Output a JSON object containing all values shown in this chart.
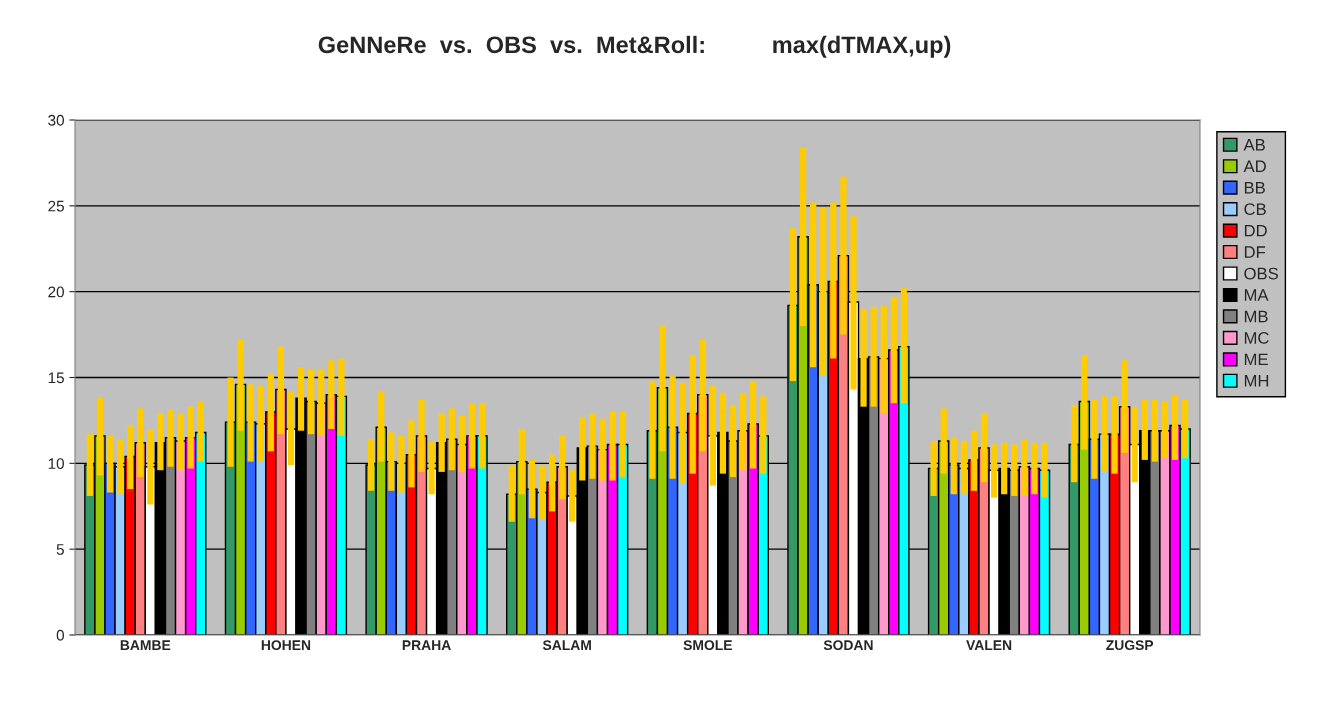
{
  "chart_data": {
    "type": "bar",
    "title": "GeNNeRe  vs.  OBS  vs.  Met&Roll:          max(dTMAX,up)",
    "categories": [
      "BAMBE",
      "HOHEN",
      "PRAHA",
      "SALAM",
      "SMOLE",
      "SODAN",
      "VALEN",
      "ZUGSP"
    ],
    "ylim": [
      0,
      30
    ],
    "yticks": [
      0,
      5,
      10,
      15,
      20,
      25,
      30
    ],
    "grid": "y",
    "legend": "right",
    "series": [
      {
        "name": "AB",
        "color": "#339966",
        "values": [
          9.9,
          12.4,
          9.9,
          8.2,
          11.9,
          19.2,
          9.7,
          11.1
        ],
        "errors": [
          [
            8.1,
            11.7
          ],
          [
            9.8,
            15.0
          ],
          [
            8.4,
            11.4
          ],
          [
            6.6,
            9.9
          ],
          [
            9.1,
            14.8
          ],
          [
            14.8,
            23.7
          ],
          [
            8.1,
            11.3
          ],
          [
            8.9,
            13.4
          ]
        ]
      },
      {
        "name": "AD",
        "color": "#99cc00",
        "values": [
          11.6,
          14.6,
          12.1,
          10.1,
          14.4,
          23.2,
          11.3,
          13.6
        ],
        "errors": [
          [
            9.3,
            13.8
          ],
          [
            11.9,
            17.2
          ],
          [
            10.1,
            14.2
          ],
          [
            8.2,
            12.0
          ],
          [
            10.7,
            18.0
          ],
          [
            18.0,
            28.4
          ],
          [
            9.4,
            13.2
          ],
          [
            10.8,
            16.3
          ]
        ]
      },
      {
        "name": "BB",
        "color": "#3366ff",
        "values": [
          10.0,
          12.4,
          10.1,
          8.5,
          12.1,
          20.4,
          9.9,
          11.4
        ],
        "errors": [
          [
            8.3,
            11.6
          ],
          [
            10.1,
            14.6
          ],
          [
            8.4,
            11.8
          ],
          [
            6.8,
            10.2
          ],
          [
            9.1,
            15.1
          ],
          [
            15.6,
            25.2
          ],
          [
            8.2,
            11.5
          ],
          [
            9.1,
            13.7
          ]
        ]
      },
      {
        "name": "CB",
        "color": "#99ccff",
        "values": [
          9.8,
          12.3,
          10.0,
          8.3,
          11.8,
          20.0,
          9.7,
          11.7
        ],
        "errors": [
          [
            8.2,
            11.4
          ],
          [
            10.1,
            14.5
          ],
          [
            8.3,
            11.6
          ],
          [
            6.7,
            9.9
          ],
          [
            8.8,
            14.7
          ],
          [
            15.1,
            24.9
          ],
          [
            8.2,
            11.3
          ],
          [
            9.5,
            13.9
          ]
        ]
      },
      {
        "name": "DD",
        "color": "#ff0000",
        "values": [
          10.4,
          13.0,
          10.5,
          8.9,
          12.9,
          20.6,
          10.2,
          11.7
        ],
        "errors": [
          [
            8.5,
            12.2
          ],
          [
            10.7,
            15.2
          ],
          [
            8.6,
            12.5
          ],
          [
            7.2,
            10.5
          ],
          [
            9.4,
            16.3
          ],
          [
            16.1,
            25.2
          ],
          [
            8.4,
            11.9
          ],
          [
            9.4,
            13.9
          ]
        ]
      },
      {
        "name": "DF",
        "color": "#ff8080",
        "values": [
          11.2,
          14.3,
          11.6,
          9.8,
          14.0,
          22.1,
          10.9,
          13.3
        ],
        "errors": [
          [
            9.2,
            13.2
          ],
          [
            11.7,
            16.8
          ],
          [
            9.5,
            13.7
          ],
          [
            7.9,
            11.6
          ],
          [
            10.7,
            17.2
          ],
          [
            17.5,
            26.7
          ],
          [
            8.9,
            12.9
          ],
          [
            10.6,
            16.0
          ]
        ]
      },
      {
        "name": "OBS",
        "color": "#ffffff",
        "values": [
          9.8,
          12.0,
          9.7,
          8.1,
          11.6,
          19.4,
          9.6,
          11.1
        ],
        "errors": [
          [
            7.6,
            12.0
          ],
          [
            9.9,
            14.2
          ],
          [
            8.2,
            11.3
          ],
          [
            6.6,
            9.6
          ],
          [
            8.7,
            14.5
          ],
          [
            14.3,
            24.4
          ],
          [
            8.0,
            11.1
          ],
          [
            8.9,
            13.3
          ]
        ]
      },
      {
        "name": "MA",
        "color": "#000000",
        "values": [
          11.2,
          13.8,
          11.2,
          10.9,
          11.8,
          16.1,
          9.7,
          11.9
        ],
        "errors": [
          [
            9.6,
            12.9
          ],
          [
            11.9,
            15.6
          ],
          [
            9.5,
            12.9
          ],
          [
            9.0,
            12.7
          ],
          [
            9.4,
            14.1
          ],
          [
            13.3,
            19.0
          ],
          [
            8.2,
            11.2
          ],
          [
            10.2,
            13.7
          ]
        ]
      },
      {
        "name": "MB",
        "color": "#808080",
        "values": [
          11.5,
          13.6,
          11.4,
          11.0,
          11.3,
          16.2,
          9.6,
          11.9
        ],
        "errors": [
          [
            9.8,
            13.1
          ],
          [
            11.7,
            15.5
          ],
          [
            9.6,
            13.2
          ],
          [
            9.1,
            12.9
          ],
          [
            9.2,
            13.4
          ],
          [
            13.3,
            19.1
          ],
          [
            8.1,
            11.1
          ],
          [
            10.1,
            13.7
          ]
        ]
      },
      {
        "name": "MC",
        "color": "#ff99cc",
        "values": [
          11.3,
          13.5,
          11.1,
          10.8,
          11.9,
          16.1,
          9.8,
          11.9
        ],
        "errors": [
          [
            9.6,
            12.9
          ],
          [
            11.6,
            15.5
          ],
          [
            9.5,
            12.8
          ],
          [
            9.0,
            12.6
          ],
          [
            9.6,
            14.1
          ],
          [
            12.9,
            19.2
          ],
          [
            8.1,
            11.4
          ],
          [
            10.3,
            13.6
          ]
        ]
      },
      {
        "name": "ME",
        "color": "#ff00ff",
        "values": [
          11.5,
          14.0,
          11.6,
          11.1,
          12.3,
          16.6,
          9.7,
          12.2
        ],
        "errors": [
          [
            9.7,
            13.3
          ],
          [
            12.0,
            16.0
          ],
          [
            9.7,
            13.5
          ],
          [
            9.0,
            13.0
          ],
          [
            9.7,
            14.8
          ],
          [
            13.5,
            19.7
          ],
          [
            8.2,
            11.2
          ],
          [
            10.2,
            14.0
          ]
        ]
      },
      {
        "name": "MH",
        "color": "#00ffff",
        "values": [
          11.8,
          13.9,
          11.6,
          11.1,
          11.6,
          16.8,
          9.6,
          12.0
        ],
        "errors": [
          [
            10.1,
            13.6
          ],
          [
            11.6,
            16.1
          ],
          [
            9.7,
            13.5
          ],
          [
            9.2,
            13.0
          ],
          [
            9.4,
            13.9
          ],
          [
            13.5,
            20.2
          ],
          [
            8.0,
            11.2
          ],
          [
            10.3,
            13.7
          ]
        ]
      }
    ]
  }
}
